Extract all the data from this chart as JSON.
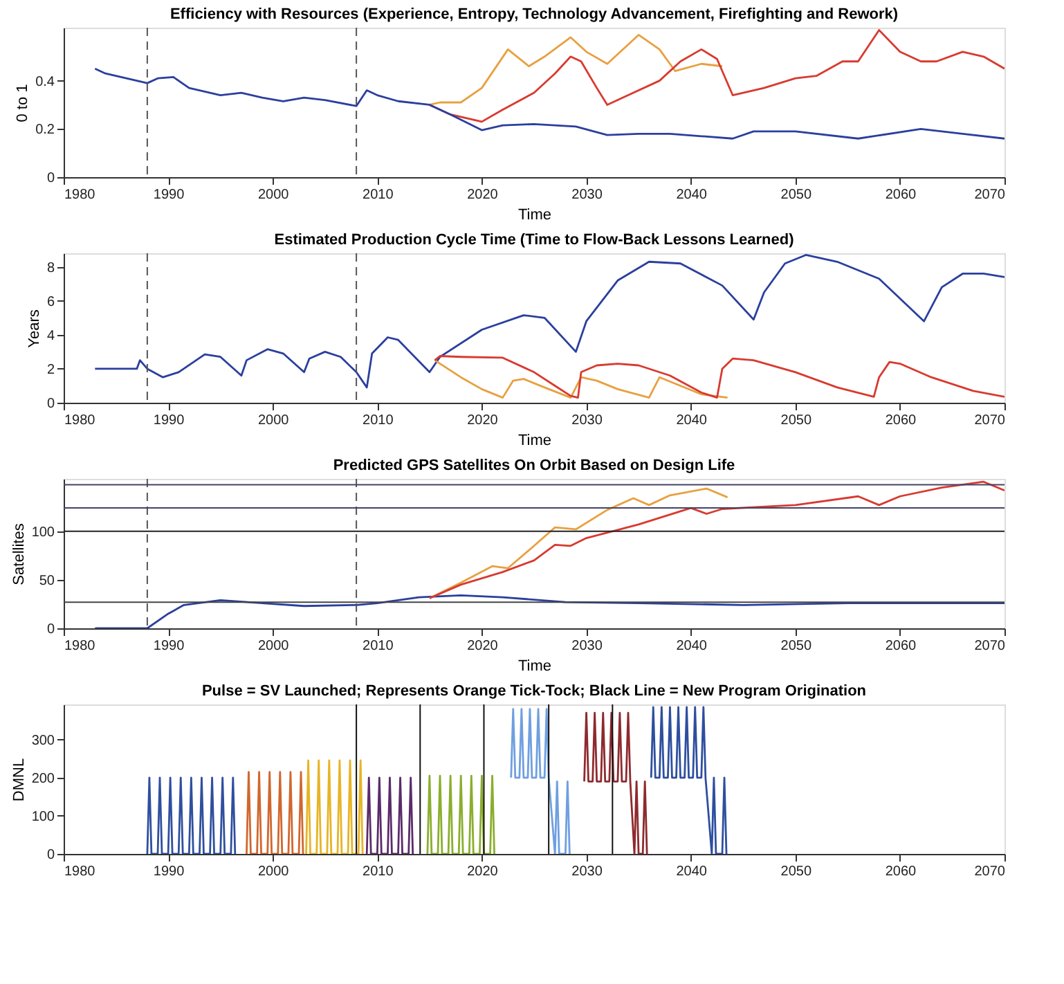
{
  "chart_data": [
    {
      "type": "line",
      "title": "Efficiency with Resources (Experience, Entropy, Technology Advancement, Firefighting and Rework)",
      "xlabel": "Time",
      "ylabel": "0 to 1",
      "xlim": [
        1980,
        2070
      ],
      "xticks": [
        1980,
        1990,
        2000,
        2010,
        2020,
        2030,
        2040,
        2050,
        2060,
        2070
      ],
      "ylim": [
        0,
        0.62
      ],
      "yticks": [
        0,
        0.2,
        0.4
      ],
      "grid": false,
      "ref_lines": [
        {
          "axis": "x",
          "value": 1988,
          "color": "#555555",
          "line_style": "dashed"
        },
        {
          "axis": "x",
          "value": 2008,
          "color": "#555555",
          "line_style": "dashed"
        }
      ],
      "series": [
        {
          "color": "#e8a040",
          "x": [
            2015,
            2016,
            2018,
            2020,
            2022.5,
            2024.5,
            2026,
            2028.5,
            2030,
            2032,
            2035,
            2037,
            2038.5,
            2041,
            2043
          ],
          "values": [
            0.3,
            0.31,
            0.31,
            0.37,
            0.53,
            0.46,
            0.5,
            0.58,
            0.52,
            0.47,
            0.59,
            0.53,
            0.44,
            0.47,
            0.46
          ]
        },
        {
          "color": "#d83a30",
          "x": [
            2015,
            2017,
            2020,
            2022,
            2025,
            2027,
            2028.5,
            2029.5,
            2031,
            2032,
            2034,
            2037,
            2039,
            2041,
            2042.5,
            2044,
            2047,
            2050,
            2052,
            2054.5,
            2056,
            2058,
            2060,
            2062,
            2063.5,
            2066,
            2068,
            2070
          ],
          "values": [
            0.3,
            0.26,
            0.23,
            0.28,
            0.35,
            0.43,
            0.5,
            0.48,
            0.37,
            0.3,
            0.34,
            0.4,
            0.48,
            0.53,
            0.49,
            0.34,
            0.37,
            0.41,
            0.42,
            0.48,
            0.48,
            0.61,
            0.52,
            0.48,
            0.48,
            0.52,
            0.5,
            0.45
          ]
        },
        {
          "color": "#2b3f9e",
          "x": [
            1983,
            1984,
            1986,
            1988,
            1989,
            1990.5,
            1992,
            1995,
            1997,
            1999,
            2001,
            2003,
            2005,
            2008,
            2009,
            2010,
            2012,
            2015,
            2017,
            2020,
            2022,
            2025,
            2029,
            2032,
            2035,
            2038,
            2041,
            2044,
            2046,
            2050,
            2056,
            2062,
            2066,
            2070
          ],
          "values": [
            0.45,
            0.43,
            0.41,
            0.39,
            0.41,
            0.415,
            0.37,
            0.34,
            0.35,
            0.33,
            0.315,
            0.33,
            0.32,
            0.295,
            0.36,
            0.34,
            0.315,
            0.3,
            0.26,
            0.195,
            0.215,
            0.22,
            0.21,
            0.175,
            0.18,
            0.18,
            0.17,
            0.16,
            0.19,
            0.19,
            0.16,
            0.2,
            0.18,
            0.16
          ]
        }
      ]
    },
    {
      "type": "line",
      "title": "Estimated Production Cycle Time (Time to Flow-Back Lessons Learned)",
      "xlabel": "Time",
      "ylabel": "Years",
      "xlim": [
        1980,
        2070
      ],
      "xticks": [
        1980,
        1990,
        2000,
        2010,
        2020,
        2030,
        2040,
        2050,
        2060,
        2070
      ],
      "ylim": [
        0,
        8.8
      ],
      "yticks": [
        0,
        2,
        4,
        6,
        8
      ],
      "grid": false,
      "ref_lines": [
        {
          "axis": "x",
          "value": 1988,
          "color": "#555555",
          "line_style": "dashed"
        },
        {
          "axis": "x",
          "value": 2008,
          "color": "#555555",
          "line_style": "dashed"
        }
      ],
      "series": [
        {
          "color": "#2b3f9e",
          "x": [
            1983,
            1987,
            1987.3,
            1988,
            1989.5,
            1991,
            1993.5,
            1995,
            1997,
            1997.5,
            1999.5,
            2001,
            2003,
            2003.5,
            2005,
            2006.5,
            2008,
            2009,
            2009.5,
            2011,
            2012,
            2015,
            2016,
            2020,
            2024,
            2026,
            2029,
            2030,
            2033,
            2036,
            2039,
            2043,
            2046,
            2047,
            2049,
            2051,
            2054,
            2058,
            2062.3,
            2064,
            2066,
            2068,
            2070
          ],
          "values": [
            2,
            2,
            2.5,
            2,
            1.5,
            1.8,
            2.85,
            2.7,
            1.6,
            2.5,
            3.15,
            2.9,
            1.8,
            2.6,
            3,
            2.7,
            1.8,
            0.9,
            2.9,
            3.85,
            3.7,
            1.8,
            2.7,
            4.3,
            5.15,
            5,
            3,
            4.8,
            7.2,
            8.3,
            8.2,
            6.9,
            4.9,
            6.5,
            8.2,
            8.7,
            8.3,
            7.3,
            4.8,
            6.8,
            7.6,
            7.6,
            7.4
          ]
        },
        {
          "color": "#e8a040",
          "x": [
            2015.5,
            2018,
            2020,
            2022,
            2023,
            2024,
            2026,
            2028.5,
            2029.5,
            2031,
            2033,
            2036,
            2037,
            2039,
            2041,
            2043.5
          ],
          "values": [
            2.5,
            1.5,
            0.8,
            0.3,
            1.3,
            1.4,
            0.9,
            0.3,
            1.5,
            1.3,
            0.8,
            0.3,
            1.5,
            1,
            0.5,
            0.3
          ]
        },
        {
          "color": "#d83a30",
          "x": [
            2015.5,
            2016,
            2018,
            2022,
            2025,
            2027,
            2028.5,
            2029.2,
            2029.5,
            2031,
            2033,
            2035,
            2038,
            2041,
            2042.5,
            2043,
            2044,
            2046,
            2050,
            2054,
            2057.5,
            2058,
            2059,
            2060,
            2063,
            2067,
            2070
          ],
          "values": [
            2.5,
            2.75,
            2.7,
            2.65,
            1.8,
            1,
            0.4,
            0.3,
            1.8,
            2.2,
            2.3,
            2.2,
            1.6,
            0.6,
            0.3,
            2,
            2.6,
            2.5,
            1.8,
            0.9,
            0.35,
            1.5,
            2.4,
            2.3,
            1.5,
            0.7,
            0.35
          ]
        }
      ]
    },
    {
      "type": "line",
      "title": "Predicted GPS Satellites On Orbit Based on Design Life",
      "xlabel": "Time",
      "ylabel": "Satellites",
      "xlim": [
        1980,
        2070
      ],
      "xticks": [
        1980,
        1990,
        2000,
        2010,
        2020,
        2030,
        2040,
        2050,
        2060,
        2070
      ],
      "ylim": [
        0,
        154
      ],
      "yticks": [
        0,
        50,
        100
      ],
      "grid": false,
      "ref_lines": [
        {
          "axis": "x",
          "value": 1988,
          "color": "#555555",
          "line_style": "dashed"
        },
        {
          "axis": "x",
          "value": 2008,
          "color": "#555555",
          "line_style": "dashed"
        },
        {
          "axis": "y",
          "value": 27,
          "color": "#444444",
          "line_style": "solid"
        },
        {
          "axis": "y",
          "value": 100,
          "color": "#222222",
          "line_style": "solid"
        },
        {
          "axis": "y",
          "value": 124,
          "color": "#444466",
          "line_style": "solid"
        },
        {
          "axis": "y",
          "value": 148,
          "color": "#444466",
          "line_style": "solid"
        }
      ],
      "series": [
        {
          "color": "#2b3f9e",
          "x": [
            1983,
            1988,
            1990,
            1991.5,
            1995,
            1999,
            2003,
            2008,
            2010,
            2014,
            2018,
            2022,
            2028,
            2035,
            2045,
            2055,
            2070
          ],
          "values": [
            0,
            0,
            15,
            24,
            29,
            26,
            23,
            24,
            26,
            32,
            34,
            32,
            27,
            26,
            24,
            26,
            26
          ]
        },
        {
          "color": "#e8a040",
          "x": [
            2015,
            2018,
            2021,
            2022.5,
            2025,
            2027,
            2029,
            2032,
            2034.5,
            2036,
            2038,
            2041.5,
            2043.5
          ],
          "values": [
            31,
            47,
            64,
            62,
            85,
            104,
            102,
            122,
            134,
            127,
            137,
            144,
            135
          ]
        },
        {
          "color": "#d83a30",
          "x": [
            2015,
            2018,
            2022,
            2025,
            2027,
            2028.5,
            2030,
            2035,
            2040,
            2041.5,
            2043,
            2050,
            2056,
            2058,
            2060,
            2064,
            2068,
            2070
          ],
          "values": [
            31,
            45,
            58,
            70,
            86,
            85,
            93,
            107,
            124,
            118,
            123,
            127,
            136,
            127,
            136,
            145,
            151,
            142
          ]
        }
      ]
    },
    {
      "type": "line",
      "title": "Pulse = SV Launched; Represents Orange Tick-Tock; Black Line = New Program Origination",
      "ylabel": "DMNL",
      "xlim": [
        1980,
        2070
      ],
      "xticks": [
        1980,
        1990,
        2000,
        2010,
        2020,
        2030,
        2040,
        2050,
        2060,
        2070
      ],
      "ylim": [
        0,
        392
      ],
      "yticks": [
        0,
        100,
        200,
        300
      ],
      "grid": false,
      "ref_lines": [
        {
          "axis": "x",
          "value": 2008,
          "color": "#111111",
          "line_style": "solid"
        },
        {
          "axis": "x",
          "value": 2014.1,
          "color": "#111111",
          "line_style": "solid"
        },
        {
          "axis": "x",
          "value": 2020.2,
          "color": "#111111",
          "line_style": "solid"
        },
        {
          "axis": "x",
          "value": 2026.4,
          "color": "#111111",
          "line_style": "solid"
        },
        {
          "axis": "x",
          "value": 2032.5,
          "color": "#111111",
          "line_style": "solid"
        }
      ],
      "series": [
        {
          "color": "#2f4f9f",
          "x": [
            1988,
            1988.2,
            1988.4,
            1989,
            1989.2,
            1989.4,
            1990,
            1990.2,
            1990.4,
            1991,
            1991.2,
            1991.4,
            1992,
            1992.2,
            1992.4,
            1993,
            1993.2,
            1993.4,
            1994,
            1994.2,
            1994.4,
            1995,
            1995.2,
            1995.4,
            1996,
            1996.2,
            1996.4
          ],
          "values": [
            0,
            200,
            0,
            0,
            200,
            0,
            0,
            200,
            0,
            0,
            200,
            0,
            0,
            200,
            0,
            0,
            200,
            0,
            0,
            200,
            0,
            0,
            200,
            0,
            0,
            200,
            0
          ]
        },
        {
          "color": "#d0672e",
          "x": [
            1997.5,
            1997.7,
            1997.9,
            1998.5,
            1998.7,
            1998.9,
            1999.5,
            1999.7,
            1999.9,
            2000.5,
            2000.7,
            2000.9,
            2001.5,
            2001.7,
            2001.9,
            2002.5,
            2002.7,
            2002.9
          ],
          "values": [
            0,
            215,
            0,
            0,
            215,
            0,
            0,
            215,
            0,
            0,
            215,
            0,
            0,
            215,
            0,
            0,
            215,
            0
          ]
        },
        {
          "color": "#e6b425",
          "x": [
            2003.2,
            2003.4,
            2003.6,
            2004.2,
            2004.4,
            2004.6,
            2005.2,
            2005.4,
            2005.6,
            2006.2,
            2006.4,
            2006.6,
            2007.2,
            2007.4,
            2007.6,
            2008.2,
            2008.4,
            2008.6
          ],
          "values": [
            0,
            245,
            0,
            0,
            245,
            0,
            0,
            245,
            0,
            0,
            245,
            0,
            0,
            245,
            0,
            0,
            245,
            0
          ]
        },
        {
          "color": "#5b2b6b",
          "x": [
            2009,
            2009.2,
            2009.4,
            2010,
            2010.2,
            2010.4,
            2011,
            2011.2,
            2011.4,
            2012,
            2012.2,
            2012.4,
            2013,
            2013.2,
            2013.4
          ],
          "values": [
            0,
            200,
            0,
            0,
            200,
            0,
            0,
            200,
            0,
            0,
            200,
            0,
            0,
            200,
            0
          ]
        },
        {
          "color": "#8aae2e",
          "x": [
            2014.8,
            2015,
            2015.2,
            2015.8,
            2016,
            2016.2,
            2016.8,
            2017,
            2017.2,
            2017.8,
            2018,
            2018.2,
            2018.8,
            2019,
            2019.2,
            2019.8,
            2020,
            2020.2,
            2020.8,
            2021,
            2021.2
          ],
          "values": [
            0,
            205,
            0,
            0,
            205,
            0,
            0,
            205,
            0,
            0,
            205,
            0,
            0,
            205,
            0,
            0,
            205,
            0,
            0,
            205,
            0
          ]
        },
        {
          "color": "#6f9fe0",
          "x": [
            2022.8,
            2023,
            2023.2,
            2023.6,
            2023.8,
            2024,
            2024.4,
            2024.6,
            2024.8,
            2025.2,
            2025.4,
            2025.6,
            2026,
            2026.2,
            2026.4,
            2027,
            2027.2,
            2027.4,
            2028,
            2028.2,
            2028.4
          ],
          "values": [
            200,
            380,
            200,
            200,
            380,
            200,
            200,
            380,
            200,
            200,
            380,
            200,
            200,
            380,
            200,
            0,
            190,
            0,
            0,
            190,
            0
          ]
        },
        {
          "color": "#8e2a2e",
          "x": [
            2029.8,
            2030,
            2030.2,
            2030.6,
            2030.8,
            2031,
            2031.4,
            2031.6,
            2031.8,
            2032.2,
            2032.4,
            2032.6,
            2033,
            2033.2,
            2033.4,
            2033.8,
            2034,
            2034.2,
            2034.6,
            2034.8,
            2035,
            2035.4,
            2035.6,
            2035.8
          ],
          "values": [
            190,
            370,
            190,
            190,
            370,
            190,
            190,
            370,
            190,
            190,
            370,
            190,
            190,
            370,
            190,
            190,
            370,
            190,
            0,
            190,
            0,
            0,
            190,
            0
          ]
        },
        {
          "color": "#2e4f9f",
          "x": [
            2036.2,
            2036.4,
            2036.6,
            2037,
            2037.2,
            2037.4,
            2037.8,
            2038,
            2038.2,
            2038.6,
            2038.8,
            2039,
            2039.4,
            2039.6,
            2039.8,
            2040.2,
            2040.4,
            2040.6,
            2041,
            2041.2,
            2041.4,
            2042,
            2042.2,
            2042.4,
            2043,
            2043.2,
            2043.4
          ],
          "values": [
            200,
            385,
            200,
            200,
            385,
            200,
            200,
            385,
            200,
            200,
            385,
            200,
            200,
            385,
            200,
            200,
            385,
            200,
            200,
            385,
            200,
            0,
            200,
            0,
            0,
            200,
            0
          ]
        }
      ]
    }
  ]
}
